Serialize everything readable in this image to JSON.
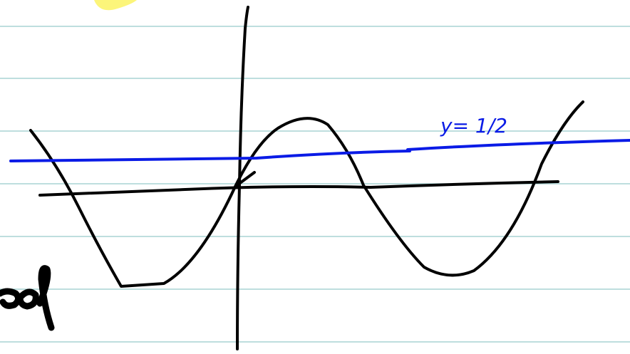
{
  "annotation": {
    "label": "y= 1/2"
  }
}
